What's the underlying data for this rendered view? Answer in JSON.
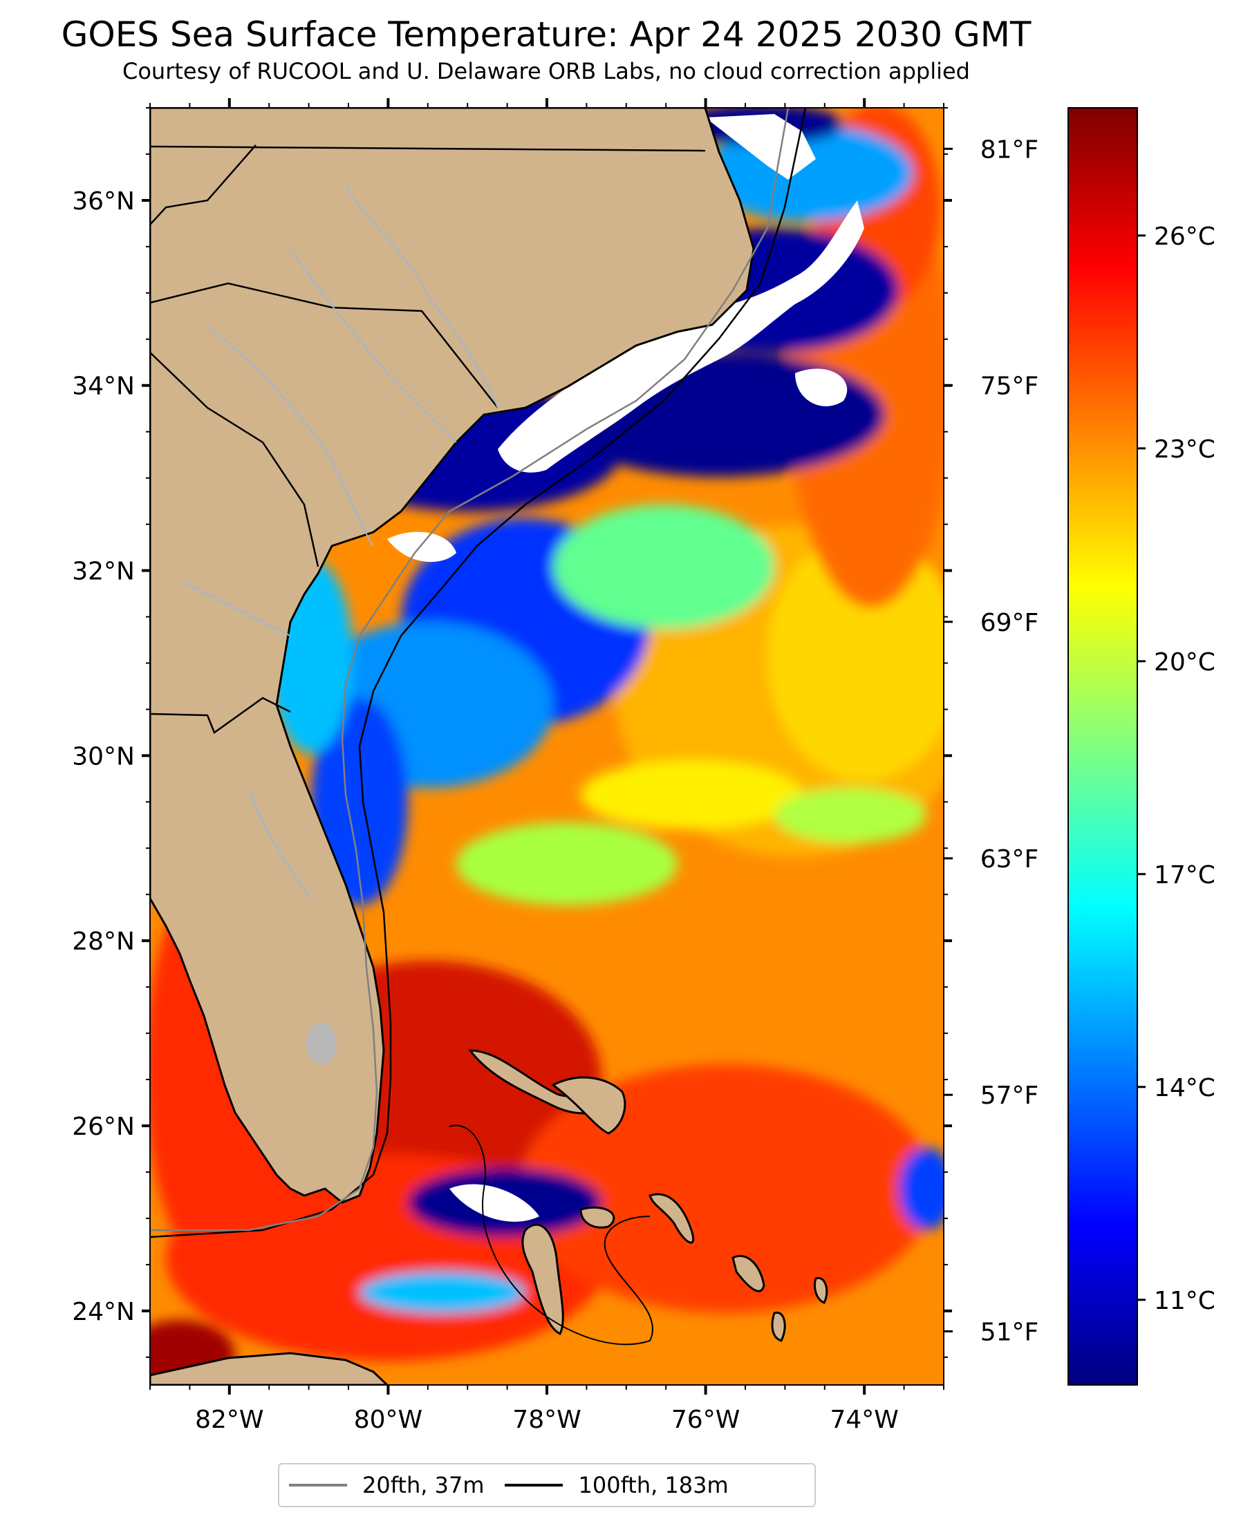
{
  "title": "GOES Sea Surface Temperature: Apr 24 2025 2030 GMT",
  "subtitle": "Courtesy of RUCOOL and U. Delaware ORB Labs, no cloud correction applied",
  "map": {
    "lon_range": [
      -83.0,
      -73.0
    ],
    "lat_range": [
      23.2,
      37.0
    ],
    "lat_ticks": [
      {
        "value": 24,
        "label": "24°N"
      },
      {
        "value": 26,
        "label": "26°N"
      },
      {
        "value": 28,
        "label": "28°N"
      },
      {
        "value": 30,
        "label": "30°N"
      },
      {
        "value": 32,
        "label": "32°N"
      },
      {
        "value": 34,
        "label": "34°N"
      },
      {
        "value": 36,
        "label": "36°N"
      }
    ],
    "lon_ticks": [
      {
        "value": -82,
        "label": "82°W"
      },
      {
        "value": -80,
        "label": "80°W"
      },
      {
        "value": -78,
        "label": "78°W"
      },
      {
        "value": -76,
        "label": "76°W"
      },
      {
        "value": -74,
        "label": "74°W"
      }
    ],
    "land_color": "#d2b48c",
    "cloud_color": "#ffffff"
  },
  "colorbar": {
    "colormap": "jet",
    "range_c": [
      9.8,
      27.8
    ],
    "celsius_ticks": [
      {
        "value": 11,
        "label": "11°C"
      },
      {
        "value": 14,
        "label": "14°C"
      },
      {
        "value": 17,
        "label": "17°C"
      },
      {
        "value": 20,
        "label": "20°C"
      },
      {
        "value": 23,
        "label": "23°C"
      },
      {
        "value": 26,
        "label": "26°C"
      }
    ],
    "fahrenheit_ticks": [
      {
        "value": 51,
        "label": "51°F"
      },
      {
        "value": 57,
        "label": "57°F"
      },
      {
        "value": 63,
        "label": "63°F"
      },
      {
        "value": 69,
        "label": "69°F"
      },
      {
        "value": 75,
        "label": "75°F"
      },
      {
        "value": 81,
        "label": "81°F"
      }
    ]
  },
  "legend": {
    "items": [
      {
        "label": "20fth, 37m",
        "color": "#808080"
      },
      {
        "label": "100fth, 183m",
        "color": "#000000"
      }
    ]
  }
}
